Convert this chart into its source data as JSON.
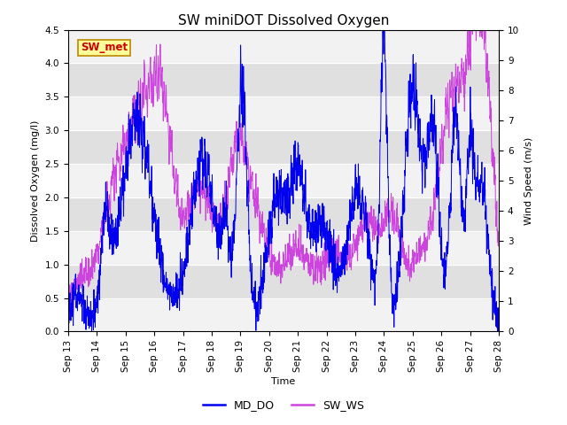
{
  "title": "SW miniDOT Dissolved Oxygen",
  "ylabel_left": "Dissolved Oxygen (mg/l)",
  "ylabel_right": "Wind Speed (m/s)",
  "xlabel": "Time",
  "ylim_left": [
    0.0,
    4.5
  ],
  "ylim_right": [
    0.0,
    10.0
  ],
  "left_yticks": [
    0.0,
    0.5,
    1.0,
    1.5,
    2.0,
    2.5,
    3.0,
    3.5,
    4.0,
    4.5
  ],
  "right_yticks": [
    0.0,
    1.0,
    2.0,
    3.0,
    4.0,
    5.0,
    6.0,
    7.0,
    8.0,
    9.0,
    10.0
  ],
  "color_DO": "#0000ee",
  "color_WS": "#cc44dd",
  "label_DO": "MD_DO",
  "label_WS": "SW_WS",
  "annotation_text": "SW_met",
  "annotation_color": "#cc0000",
  "annotation_bg": "#ffff99",
  "annotation_edgecolor": "#bb8800",
  "bg_color": "#e8e8e8",
  "band_color_light": "#f2f2f2",
  "band_color_dark": "#e0e0e0",
  "title_fontsize": 11,
  "axis_fontsize": 8,
  "tick_fontsize": 7.5,
  "legend_fontsize": 9,
  "n_points": 2000
}
